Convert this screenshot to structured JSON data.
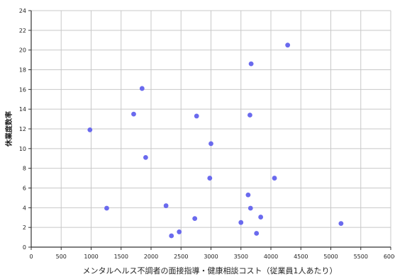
{
  "chart_data": {
    "type": "scatter",
    "title": "",
    "xlabel": "メンタルヘルス不調者の面接指導・健康相談コスト（従業員1人あたり）",
    "ylabel": "休業度数率",
    "xlim": [
      0,
      6000
    ],
    "ylim": [
      0,
      24
    ],
    "xticks": [
      0,
      500,
      1000,
      1500,
      2000,
      2500,
      3000,
      3500,
      4000,
      4500,
      5000,
      5500,
      6000
    ],
    "yticks": [
      0,
      2,
      4,
      6,
      8,
      10,
      12,
      14,
      16,
      18,
      20,
      22,
      24
    ],
    "grid": true,
    "legend": "none",
    "colors": {
      "point": "#6a6aee",
      "grid": "#c8c8c8",
      "axis": "#333333"
    },
    "series": [
      {
        "points": [
          {
            "x": 980,
            "y": 11.9
          },
          {
            "x": 1260,
            "y": 3.95
          },
          {
            "x": 1710,
            "y": 13.5
          },
          {
            "x": 1850,
            "y": 16.1
          },
          {
            "x": 1910,
            "y": 9.1
          },
          {
            "x": 2250,
            "y": 4.2
          },
          {
            "x": 2340,
            "y": 1.15
          },
          {
            "x": 2470,
            "y": 1.55
          },
          {
            "x": 2730,
            "y": 2.9
          },
          {
            "x": 2760,
            "y": 13.3
          },
          {
            "x": 2980,
            "y": 7.0
          },
          {
            "x": 3000,
            "y": 10.5
          },
          {
            "x": 3500,
            "y": 2.5
          },
          {
            "x": 3620,
            "y": 5.3
          },
          {
            "x": 3650,
            "y": 13.4
          },
          {
            "x": 3660,
            "y": 3.95
          },
          {
            "x": 3670,
            "y": 18.6
          },
          {
            "x": 3760,
            "y": 1.4
          },
          {
            "x": 3830,
            "y": 3.05
          },
          {
            "x": 4060,
            "y": 7.0
          },
          {
            "x": 4280,
            "y": 20.5
          },
          {
            "x": 5170,
            "y": 2.4
          }
        ]
      }
    ]
  }
}
